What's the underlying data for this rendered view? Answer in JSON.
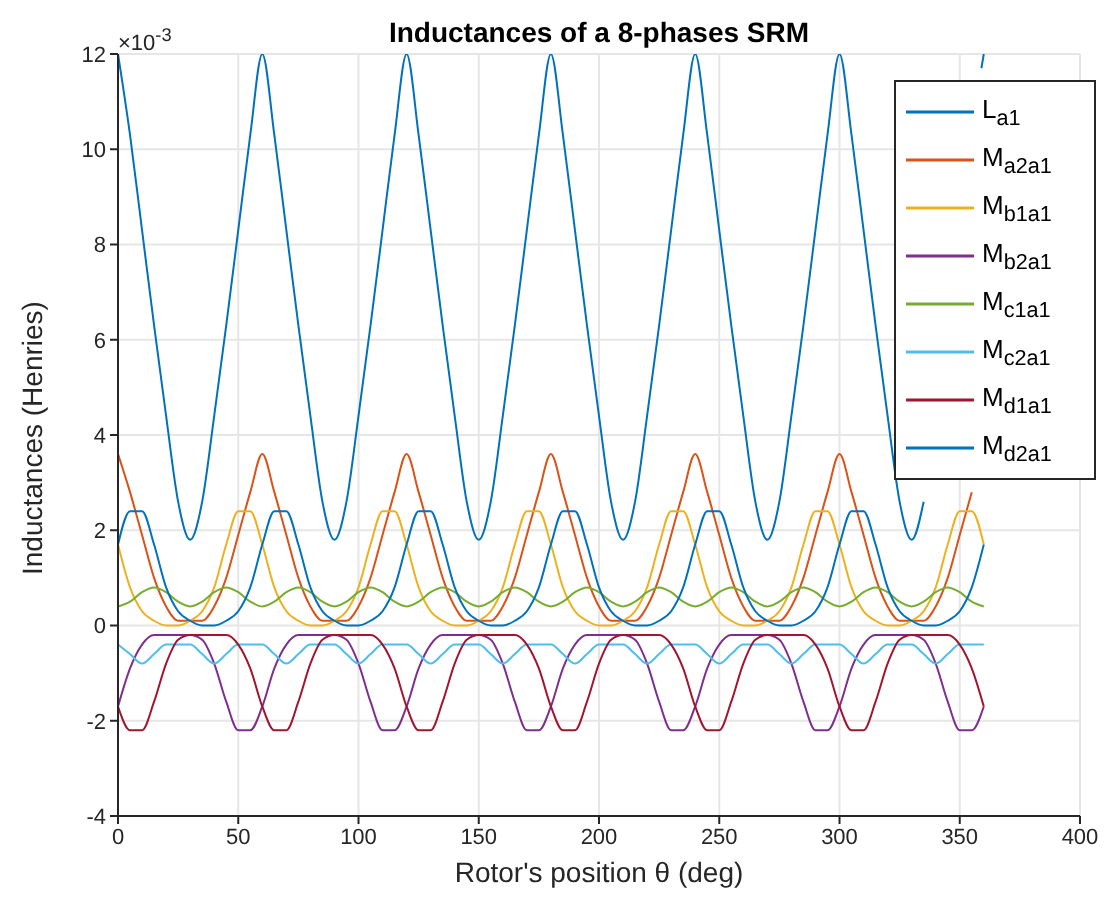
{
  "chart_data": {
    "type": "line",
    "title": "Inductances of a 8-phases SRM",
    "xlabel": "Rotor's position θ (deg)",
    "ylabel": "Inductances (Henries)",
    "annotations": [
      "×10$^{-3}$"
    ],
    "x": [
      0,
      5,
      10,
      15,
      20,
      25,
      30,
      35,
      40,
      45,
      50,
      55,
      60,
      65,
      70,
      75,
      80,
      85,
      90,
      95,
      100,
      105,
      110,
      115,
      120,
      125,
      130,
      135,
      140,
      145,
      150,
      155,
      160,
      165,
      170,
      175,
      180,
      185,
      190,
      195,
      200,
      205,
      210,
      215,
      220,
      225,
      230,
      235,
      240,
      245,
      250,
      255,
      260,
      265,
      270,
      275,
      280,
      285,
      290,
      295,
      300,
      305,
      310,
      315,
      320,
      325,
      330,
      335,
      340,
      345,
      350,
      355,
      360
    ],
    "xlim": [
      0,
      400
    ],
    "xticks": [
      0,
      50,
      100,
      150,
      200,
      250,
      300,
      350,
      400
    ],
    "ylim": [
      -4,
      12
    ],
    "yticks": [
      -4,
      -2,
      0,
      2,
      4,
      6,
      8,
      10,
      12
    ],
    "grid": true,
    "legend": "top right",
    "series": [
      {
        "name": "L$_{a1}$",
        "color": "#0072bd",
        "x": [
          0,
          5,
          10,
          15,
          20,
          25,
          30,
          35,
          40,
          45,
          50,
          55,
          60,
          65,
          70,
          75,
          80,
          85,
          90,
          95,
          100,
          105,
          110,
          115,
          120,
          125,
          130,
          135,
          140,
          145,
          150,
          155,
          160,
          165,
          170,
          175,
          180,
          185,
          190,
          195,
          200,
          205,
          210,
          215,
          220,
          225,
          230,
          235,
          240,
          245,
          250,
          255,
          260,
          265,
          270,
          275,
          280,
          285,
          290,
          295,
          300,
          305,
          310,
          315,
          320,
          325,
          330,
          335,
          340,
          345,
          350,
          355,
          359,
          360
        ],
        "values": [
          12,
          10.3,
          8.3,
          6.3,
          4.4,
          2.6,
          1.8,
          2.6,
          4.4,
          6.3,
          8.3,
          10.3,
          12,
          10.3,
          8.3,
          6.3,
          4.4,
          2.6,
          1.8,
          2.6,
          4.4,
          6.3,
          8.3,
          10.3,
          12,
          10.3,
          8.3,
          6.3,
          4.4,
          2.6,
          1.8,
          2.6,
          4.4,
          6.3,
          8.3,
          10.3,
          12,
          10.3,
          8.3,
          6.3,
          4.4,
          2.6,
          1.8,
          2.6,
          4.4,
          6.3,
          8.3,
          10.3,
          12,
          10.3,
          8.3,
          6.3,
          4.4,
          2.6,
          1.8,
          2.6,
          4.4,
          6.3,
          8.3,
          10.3,
          12,
          10.3,
          8.3,
          6.3,
          4.4,
          2.6,
          1.8,
          2.6,
          null,
          null,
          null,
          null,
          11.7,
          12
        ]
      },
      {
        "name": "M$_{a2a1}$",
        "color": "#d95319",
        "values": [
          3.6,
          2.8,
          1.9,
          1.0,
          0.4,
          0.1,
          0.1,
          0.1,
          0.4,
          1.0,
          1.9,
          2.8,
          3.6,
          2.8,
          1.9,
          1.0,
          0.4,
          0.1,
          0.1,
          0.1,
          0.4,
          1.0,
          1.9,
          2.8,
          3.6,
          2.8,
          1.9,
          1.0,
          0.4,
          0.1,
          0.1,
          0.1,
          0.4,
          1.0,
          1.9,
          2.8,
          3.6,
          2.8,
          1.9,
          1.0,
          0.4,
          0.1,
          0.1,
          0.1,
          0.4,
          1.0,
          1.9,
          2.8,
          3.6,
          2.8,
          1.9,
          1.0,
          0.4,
          0.1,
          0.1,
          0.1,
          0.4,
          1.0,
          1.9,
          2.8,
          3.6,
          2.8,
          1.9,
          1.0,
          0.4,
          0.1,
          0.1,
          0.1,
          0.4,
          1.0,
          1.9,
          2.8,
          null
        ]
      },
      {
        "name": "M$_{b1a1}$",
        "color": "#edb120",
        "values": [
          1.7,
          0.8,
          0.3,
          0.1,
          0,
          0,
          0.1,
          0.3,
          0.8,
          1.7,
          2.4,
          2.4,
          1.7,
          0.8,
          0.3,
          0.1,
          0,
          0,
          0.1,
          0.3,
          0.8,
          1.7,
          2.4,
          2.4,
          1.7,
          0.8,
          0.3,
          0.1,
          0,
          0,
          0.1,
          0.3,
          0.8,
          1.7,
          2.4,
          2.4,
          1.7,
          0.8,
          0.3,
          0.1,
          0,
          0,
          0.1,
          0.3,
          0.8,
          1.7,
          2.4,
          2.4,
          1.7,
          0.8,
          0.3,
          0.1,
          0,
          0,
          0.1,
          0.3,
          0.8,
          1.7,
          2.4,
          2.4,
          1.7,
          0.8,
          0.3,
          0.1,
          0,
          0,
          0.1,
          0.3,
          0.8,
          1.7,
          2.4,
          2.4,
          1.7
        ]
      },
      {
        "name": "M$_{b2a1}$",
        "color": "#7e2f8e",
        "values": [
          -1.7,
          -0.9,
          -0.4,
          -0.2,
          -0.2,
          -0.2,
          -0.2,
          -0.3,
          -0.8,
          -1.6,
          -2.2,
          -2.2,
          -1.7,
          -0.9,
          -0.4,
          -0.2,
          -0.2,
          -0.2,
          -0.2,
          -0.3,
          -0.8,
          -1.6,
          -2.2,
          -2.2,
          -1.7,
          -0.9,
          -0.4,
          -0.2,
          -0.2,
          -0.2,
          -0.2,
          -0.3,
          -0.8,
          -1.6,
          -2.2,
          -2.2,
          -1.7,
          -0.9,
          -0.4,
          -0.2,
          -0.2,
          -0.2,
          -0.2,
          -0.3,
          -0.8,
          -1.6,
          -2.2,
          -2.2,
          -1.7,
          -0.9,
          -0.4,
          -0.2,
          -0.2,
          -0.2,
          -0.2,
          -0.3,
          -0.8,
          -1.6,
          -2.2,
          -2.2,
          -1.7,
          -0.9,
          -0.4,
          -0.2,
          -0.2,
          -0.2,
          -0.2,
          -0.3,
          -0.8,
          -1.6,
          -2.2,
          -2.2,
          -1.7
        ]
      },
      {
        "name": "M$_{c1a1}$",
        "color": "#77ac30",
        "values": [
          0.4,
          0.5,
          0.7,
          0.8,
          0.7,
          0.5,
          0.4,
          0.5,
          0.7,
          0.8,
          0.7,
          0.5,
          0.4,
          0.5,
          0.7,
          0.8,
          0.7,
          0.5,
          0.4,
          0.5,
          0.7,
          0.8,
          0.7,
          0.5,
          0.4,
          0.5,
          0.7,
          0.8,
          0.7,
          0.5,
          0.4,
          0.5,
          0.7,
          0.8,
          0.7,
          0.5,
          0.4,
          0.5,
          0.7,
          0.8,
          0.7,
          0.5,
          0.4,
          0.5,
          0.7,
          0.8,
          0.7,
          0.5,
          0.4,
          0.5,
          0.7,
          0.8,
          0.7,
          0.5,
          0.4,
          0.5,
          0.7,
          0.8,
          0.7,
          0.5,
          0.4,
          0.5,
          0.7,
          0.8,
          0.7,
          0.5,
          0.4,
          0.5,
          0.7,
          0.8,
          0.7,
          0.5,
          0.4
        ]
      },
      {
        "name": "M$_{c2a1}$",
        "color": "#4dbeee",
        "values": [
          -0.4,
          -0.6,
          -0.8,
          -0.6,
          -0.4,
          -0.4,
          -0.4,
          -0.6,
          -0.8,
          -0.6,
          -0.4,
          -0.4,
          -0.4,
          -0.6,
          -0.8,
          -0.6,
          -0.4,
          -0.4,
          -0.4,
          -0.6,
          -0.8,
          -0.6,
          -0.4,
          -0.4,
          -0.4,
          -0.6,
          -0.8,
          -0.6,
          -0.4,
          -0.4,
          -0.4,
          -0.6,
          -0.8,
          -0.6,
          -0.4,
          -0.4,
          -0.4,
          -0.6,
          -0.8,
          -0.6,
          -0.4,
          -0.4,
          -0.4,
          -0.6,
          -0.8,
          -0.6,
          -0.4,
          -0.4,
          -0.4,
          -0.6,
          -0.8,
          -0.6,
          -0.4,
          -0.4,
          -0.4,
          -0.6,
          -0.8,
          -0.6,
          -0.4,
          -0.4,
          -0.4,
          -0.6,
          -0.8,
          -0.6,
          -0.4,
          -0.4,
          -0.4,
          -0.6,
          -0.8,
          -0.6,
          -0.4,
          -0.4,
          -0.4
        ]
      },
      {
        "name": "M$_{d1a1}$",
        "color": "#a2142f",
        "values": [
          -1.7,
          -2.2,
          -2.2,
          -1.6,
          -0.8,
          -0.3,
          -0.2,
          -0.2,
          -0.2,
          -0.2,
          -0.4,
          -0.9,
          -1.7,
          -2.2,
          -2.2,
          -1.6,
          -0.8,
          -0.3,
          -0.2,
          -0.2,
          -0.2,
          -0.2,
          -0.4,
          -0.9,
          -1.7,
          -2.2,
          -2.2,
          -1.6,
          -0.8,
          -0.3,
          -0.2,
          -0.2,
          -0.2,
          -0.2,
          -0.4,
          -0.9,
          -1.7,
          -2.2,
          -2.2,
          -1.6,
          -0.8,
          -0.3,
          -0.2,
          -0.2,
          -0.2,
          -0.2,
          -0.4,
          -0.9,
          -1.7,
          -2.2,
          -2.2,
          -1.6,
          -0.8,
          -0.3,
          -0.2,
          -0.2,
          -0.2,
          -0.2,
          -0.4,
          -0.9,
          -1.7,
          -2.2,
          -2.2,
          -1.6,
          -0.8,
          -0.3,
          -0.2,
          -0.2,
          -0.2,
          -0.2,
          -0.4,
          -0.9,
          -1.7
        ]
      },
      {
        "name": "M$_{d2a1}$",
        "color": "#0072bd",
        "values": [
          1.7,
          2.4,
          2.4,
          1.7,
          0.8,
          0.3,
          0.1,
          0,
          0,
          0.1,
          0.3,
          0.8,
          1.7,
          2.4,
          2.4,
          1.7,
          0.8,
          0.3,
          0.1,
          0,
          0,
          0.1,
          0.3,
          0.8,
          1.7,
          2.4,
          2.4,
          1.7,
          0.8,
          0.3,
          0.1,
          0,
          0,
          0.1,
          0.3,
          0.8,
          1.7,
          2.4,
          2.4,
          1.7,
          0.8,
          0.3,
          0.1,
          0,
          0,
          0.1,
          0.3,
          0.8,
          1.7,
          2.4,
          2.4,
          1.7,
          0.8,
          0.3,
          0.1,
          0,
          0,
          0.1,
          0.3,
          0.8,
          1.7,
          2.4,
          2.4,
          1.7,
          0.8,
          0.3,
          0.1,
          0,
          0,
          0.1,
          0.3,
          0.8,
          1.7
        ]
      }
    ]
  }
}
